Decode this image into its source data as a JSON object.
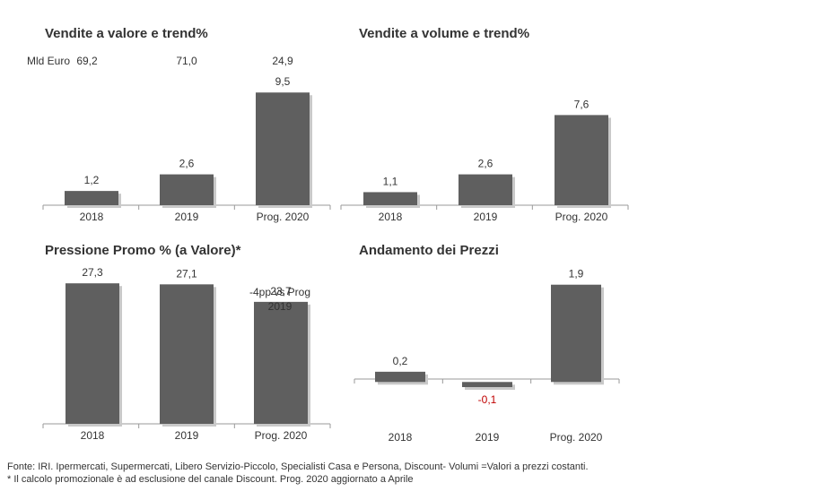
{
  "chart_data": [
    {
      "type": "bar",
      "title": "Vendite a valore e trend%",
      "categories": [
        "2018",
        "2019",
        "Prog. 2020"
      ],
      "values": [
        1.2,
        2.6,
        9.5
      ],
      "value_labels": [
        "1,2",
        "2,6",
        "9,5"
      ],
      "header_label": "Mld Euro",
      "header_values": [
        "69,2",
        "71,0",
        "24,9"
      ],
      "ylim": [
        0,
        10.5
      ],
      "grid": false,
      "legend": "none"
    },
    {
      "type": "bar",
      "title": "Vendite a volume e trend%",
      "categories": [
        "2018",
        "2019",
        "Prog. 2020"
      ],
      "values": [
        1.1,
        2.6,
        7.6
      ],
      "value_labels": [
        "1,1",
        "2,6",
        "7,6"
      ],
      "ylim": [
        0,
        10.5
      ],
      "grid": false,
      "legend": "none"
    },
    {
      "type": "bar",
      "title": "Pressione Promo % (a Valore)*",
      "categories": [
        "2018",
        "2019",
        "Prog. 2020"
      ],
      "values": [
        27.3,
        27.1,
        23.7
      ],
      "value_labels": [
        "27,3",
        "27,1",
        "23,7"
      ],
      "annotation": [
        "-4pp vs Prog",
        "2019"
      ],
      "ylim": [
        0,
        28.9
      ],
      "grid": false,
      "legend": "none"
    },
    {
      "type": "bar",
      "title": "Andamento dei Prezzi",
      "categories": [
        "2018",
        "2019",
        "Prog. 2020"
      ],
      "values": [
        0.2,
        -0.1,
        1.9
      ],
      "value_labels": [
        "0,2",
        "-0,1",
        "1,9"
      ],
      "ylim": [
        -0.1,
        2.0
      ],
      "grid": false,
      "legend": "none"
    }
  ],
  "colors": {
    "bar": "#5f5f5f",
    "shadow": "#c9c9c9",
    "axis": "#9a9a9a",
    "negative_label": "#c00000",
    "text": "#333333"
  },
  "footnotes": [
    "Fonte: IRI. Ipermercati, Supermercati, Libero Servizio-Piccolo, Specialisti Casa e Persona, Discount-  Volumi =Valori a prezzi costanti.",
    "* Il calcolo promozionale è ad esclusione del canale Discount. Prog. 2020 aggiornato a Aprile"
  ]
}
